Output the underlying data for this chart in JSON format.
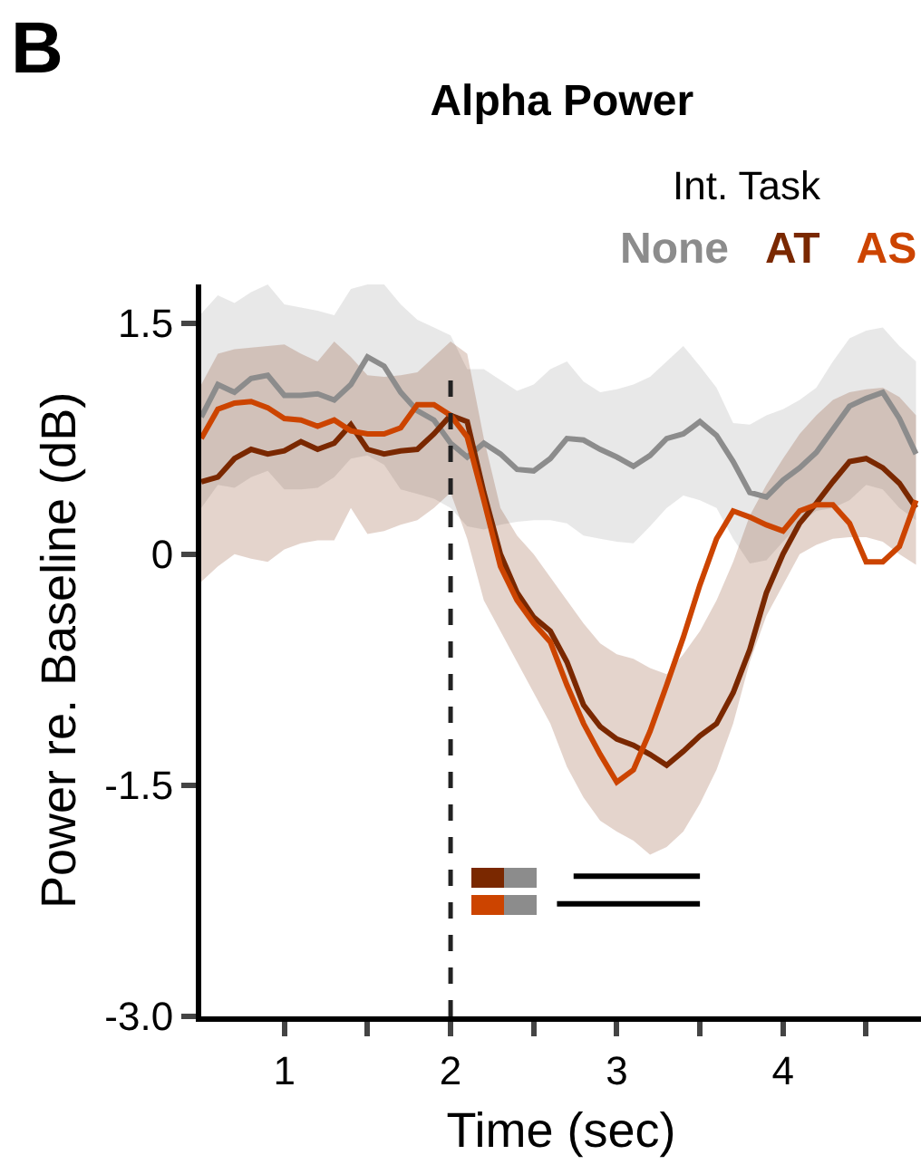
{
  "chart_data": {
    "type": "line",
    "title": "Alpha Power",
    "xlabel": "Time (sec)",
    "ylabel": "Power re. Baseline (dB)",
    "legend_title": "Int. Task",
    "annotations": [
      "B"
    ],
    "x": [
      0.5,
      0.6,
      0.7,
      0.8,
      0.9,
      1.0,
      1.1,
      1.2,
      1.3,
      1.4,
      1.5,
      1.6,
      1.7,
      1.8,
      1.9,
      2.0,
      2.1,
      2.2,
      2.3,
      2.4,
      2.5,
      2.6,
      2.7,
      2.8,
      2.9,
      3.0,
      3.1,
      3.2,
      3.3,
      3.4,
      3.5,
      3.6,
      3.7,
      3.8,
      3.9,
      4.0,
      4.1,
      4.2,
      4.3,
      4.4,
      4.5,
      4.6,
      4.7,
      4.8
    ],
    "series": [
      {
        "name": "None",
        "color": "#8c8c8c",
        "values": [
          0.89,
          1.1,
          1.05,
          1.14,
          1.16,
          1.03,
          1.03,
          1.04,
          1.0,
          1.1,
          1.28,
          1.22,
          1.05,
          0.93,
          0.87,
          0.72,
          0.63,
          0.72,
          0.65,
          0.55,
          0.54,
          0.62,
          0.75,
          0.74,
          0.68,
          0.63,
          0.57,
          0.64,
          0.75,
          0.78,
          0.86,
          0.77,
          0.6,
          0.4,
          0.37,
          0.48,
          0.56,
          0.66,
          0.81,
          0.96,
          1.01,
          1.05,
          0.88,
          0.65
        ],
        "upper": [
          1.56,
          1.68,
          1.63,
          1.7,
          1.75,
          1.62,
          1.6,
          1.58,
          1.55,
          1.72,
          1.75,
          1.75,
          1.62,
          1.52,
          1.47,
          1.42,
          1.2,
          1.2,
          1.13,
          1.06,
          1.1,
          1.2,
          1.25,
          1.12,
          1.05,
          1.07,
          1.1,
          1.15,
          1.25,
          1.35,
          1.22,
          1.08,
          0.85,
          0.84,
          0.9,
          0.94,
          1.0,
          1.08,
          1.25,
          1.4,
          1.45,
          1.47,
          1.35,
          1.25
        ],
        "lower": [
          0.3,
          0.45,
          0.43,
          0.5,
          0.54,
          0.42,
          0.42,
          0.43,
          0.5,
          0.62,
          0.64,
          0.58,
          0.42,
          0.39,
          0.36,
          0.3,
          0.18,
          0.16,
          0.19,
          0.21,
          0.22,
          0.22,
          0.2,
          0.12,
          0.1,
          0.08,
          0.07,
          0.18,
          0.3,
          0.38,
          0.35,
          0.3,
          0.1,
          -0.06,
          -0.04,
          0.08,
          0.2,
          0.28,
          0.3,
          0.35,
          0.45,
          0.42,
          0.3,
          0.22
        ]
      },
      {
        "name": "AT",
        "color": "#7a2800",
        "values": [
          0.47,
          0.5,
          0.62,
          0.68,
          0.65,
          0.67,
          0.73,
          0.68,
          0.72,
          0.84,
          0.68,
          0.65,
          0.67,
          0.68,
          0.78,
          0.9,
          0.86,
          0.4,
          0.0,
          -0.25,
          -0.41,
          -0.5,
          -0.7,
          -0.98,
          -1.12,
          -1.2,
          -1.24,
          -1.3,
          -1.37,
          -1.28,
          -1.18,
          -1.1,
          -0.9,
          -0.62,
          -0.25,
          0.0,
          0.2,
          0.33,
          0.47,
          0.6,
          0.62,
          0.56,
          0.46,
          0.3
        ],
        "upper": [
          1.1,
          1.3,
          1.33,
          1.34,
          1.35,
          1.36,
          1.3,
          1.25,
          1.38,
          1.28,
          1.16,
          1.15,
          1.16,
          1.18,
          1.28,
          1.38,
          1.3,
          0.75,
          0.3,
          0.12,
          0.0,
          -0.15,
          -0.3,
          -0.45,
          -0.58,
          -0.65,
          -0.68,
          -0.74,
          -0.78,
          -0.65,
          -0.5,
          -0.3,
          -0.05,
          0.25,
          0.45,
          0.62,
          0.78,
          0.9,
          1.0,
          1.05,
          1.07,
          1.08,
          1.02,
          0.9
        ],
        "lower": [
          -0.18,
          -0.08,
          0.0,
          -0.03,
          -0.05,
          0.03,
          0.07,
          0.09,
          0.09,
          0.3,
          0.13,
          0.15,
          0.19,
          0.22,
          0.3,
          0.4,
          0.1,
          -0.3,
          -0.5,
          -0.7,
          -0.9,
          -1.1,
          -1.38,
          -1.58,
          -1.73,
          -1.8,
          -1.86,
          -1.95,
          -1.9,
          -1.8,
          -1.62,
          -1.4,
          -1.1,
          -0.7,
          -0.4,
          -0.2,
          0.0,
          0.06,
          0.1,
          0.11,
          0.11,
          0.08,
          0.0,
          -0.07
        ]
      },
      {
        "name": "AS",
        "color": "#cc4400",
        "values": [
          0.75,
          0.94,
          0.98,
          0.99,
          0.95,
          0.88,
          0.87,
          0.83,
          0.87,
          0.8,
          0.78,
          0.78,
          0.82,
          0.97,
          0.97,
          0.9,
          0.76,
          0.35,
          -0.08,
          -0.3,
          -0.45,
          -0.57,
          -0.85,
          -1.1,
          -1.3,
          -1.48,
          -1.4,
          -1.15,
          -0.85,
          -0.54,
          -0.2,
          0.1,
          0.28,
          0.24,
          0.19,
          0.15,
          0.28,
          0.32,
          0.32,
          0.2,
          -0.05,
          -0.05,
          0.05,
          0.35
        ]
      },
      {
        "color": "#000000",
        "x": [
          2.74,
          3.5
        ],
        "values": [
          -2.09,
          -2.09
        ]
      },
      {
        "color": "#000000",
        "x": [
          2.64,
          3.5
        ],
        "values": [
          -2.27,
          -2.27
        ]
      }
    ],
    "ref_lines": [
      {
        "axis": "x",
        "value": 2,
        "color": "#222222",
        "line_style": "dashed"
      }
    ],
    "xlim": [
      0.5,
      4.83
    ],
    "xticks": [
      1,
      {
        "value": 1.5,
        "label": null
      },
      2,
      {
        "value": 2.5,
        "label": null
      },
      3,
      {
        "value": 3.5,
        "label": null
      },
      4,
      {
        "value": 4.5,
        "label": null
      }
    ],
    "ylim": [
      -3.0,
      1.75
    ],
    "yticks": [
      {
        "value": -3,
        "label": "-3.0"
      },
      -1.5,
      0,
      1.5
    ],
    "grid": false,
    "legend": "top right",
    "marker": "none",
    "line_style": "solid"
  }
}
